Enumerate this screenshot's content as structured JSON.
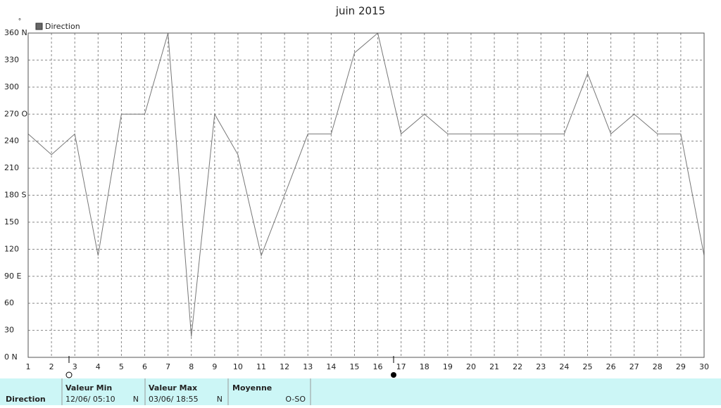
{
  "chart_data": {
    "type": "line",
    "title": "juin 2015",
    "unit": "°",
    "x": [
      1,
      2,
      3,
      4,
      5,
      6,
      7,
      8,
      9,
      10,
      11,
      12,
      13,
      14,
      15,
      16,
      17,
      18,
      19,
      20,
      21,
      22,
      23,
      24,
      25,
      26,
      27,
      28,
      29,
      30
    ],
    "series": [
      {
        "name": "Direction",
        "color": "#777777",
        "values": [
          248,
          225,
          248,
          113,
          270,
          270,
          360,
          23,
          270,
          225,
          113,
          180,
          248,
          248,
          338,
          360,
          248,
          270,
          248,
          248,
          248,
          248,
          248,
          248,
          315,
          248,
          270,
          248,
          248,
          113
        ]
      }
    ],
    "xlim": [
      1,
      30
    ],
    "xticks": [
      1,
      2,
      3,
      4,
      5,
      6,
      7,
      8,
      9,
      10,
      11,
      12,
      13,
      14,
      15,
      16,
      17,
      18,
      19,
      20,
      21,
      22,
      23,
      24,
      25,
      26,
      27,
      28,
      29,
      30
    ],
    "ylim": [
      0,
      360
    ],
    "yticks": [
      {
        "value": 0,
        "label": "0   N"
      },
      30,
      60,
      {
        "value": 90,
        "label": "90  E"
      },
      120,
      150,
      {
        "value": 180,
        "label": "180 S"
      },
      210,
      240,
      {
        "value": 270,
        "label": "270 O"
      },
      300,
      330,
      {
        "value": 360,
        "label": "360 N"
      }
    ],
    "grid": true
  },
  "summary": {
    "row_label": "Direction",
    "columns": [
      {
        "header": "Valeur Min",
        "date": "12/06/  05:10",
        "dir": "N"
      },
      {
        "header": "Valeur Max",
        "date": "03/06/  18:55",
        "dir": "N"
      },
      {
        "header": "Moyenne",
        "dir": "O-SO"
      }
    ]
  }
}
